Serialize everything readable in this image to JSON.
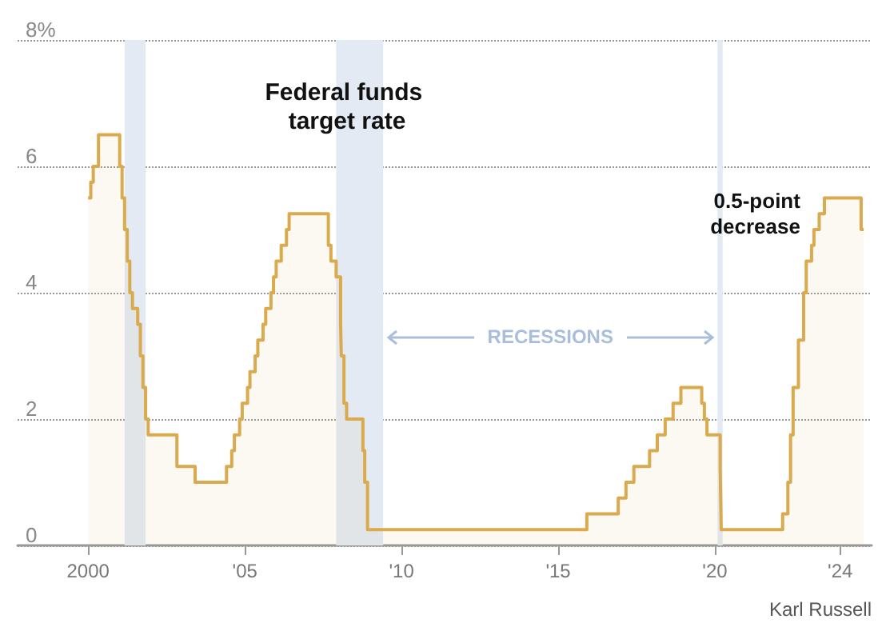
{
  "chart_data": {
    "type": "area",
    "title": "Federal funds target rate",
    "x": [
      "2000-01",
      "2000-02",
      "2000-02",
      "2000-03",
      "2000-03",
      "2000-05",
      "2000-05",
      "2001-01-03",
      "2001-01-03",
      "2001-01-31",
      "2001-01-31",
      "2001-03",
      "2001-03",
      "2001-04",
      "2001-04",
      "2001-05",
      "2001-05",
      "2001-06",
      "2001-06",
      "2001-08",
      "2001-08",
      "2001-09",
      "2001-09",
      "2001-10",
      "2001-10",
      "2001-11",
      "2001-11",
      "2001-12",
      "2001-12",
      "2002-11",
      "2002-11",
      "2003-06",
      "2003-06",
      "2004-06",
      "2004-06",
      "2004-08",
      "2004-08",
      "2004-09",
      "2004-09",
      "2004-11",
      "2004-11",
      "2004-12",
      "2004-12",
      "2005-02",
      "2005-02",
      "2005-03",
      "2005-03",
      "2005-05",
      "2005-05",
      "2005-06",
      "2005-06",
      "2005-08",
      "2005-08",
      "2005-09",
      "2005-09",
      "2005-11",
      "2005-11",
      "2005-12",
      "2005-12",
      "2006-01",
      "2006-01",
      "2006-03",
      "2006-03",
      "2006-05",
      "2006-05",
      "2006-06",
      "2006-06",
      "2007-09",
      "2007-09",
      "2007-10",
      "2007-10",
      "2007-12",
      "2007-12",
      "2008-01-22",
      "2008-01-22",
      "2008-01-30",
      "2008-01-30",
      "2008-03",
      "2008-03",
      "2008-04",
      "2008-04",
      "2008-10-08",
      "2008-10-08",
      "2008-10-29",
      "2008-10-29",
      "2008-12",
      "2008-12",
      "2015-12",
      "2015-12",
      "2016-12",
      "2016-12",
      "2017-03",
      "2017-03",
      "2017-06",
      "2017-06",
      "2017-12",
      "2017-12",
      "2018-03",
      "2018-03",
      "2018-06",
      "2018-06",
      "2018-09",
      "2018-09",
      "2018-12",
      "2018-12",
      "2019-08",
      "2019-08",
      "2019-09",
      "2019-09",
      "2019-10",
      "2019-10",
      "2020-03-03",
      "2020-03-03",
      "2020-03-15",
      "2020-03-15",
      "2022-03",
      "2022-03",
      "2022-05",
      "2022-05",
      "2022-06",
      "2022-06",
      "2022-07",
      "2022-07",
      "2022-09",
      "2022-09",
      "2022-11",
      "2022-11",
      "2022-12",
      "2022-12",
      "2023-02",
      "2023-02",
      "2023-03",
      "2023-03",
      "2023-05",
      "2023-05",
      "2023-07",
      "2023-07",
      "2024-09",
      "2024-09",
      "2024-10"
    ],
    "series": [
      {
        "color": "#d9aa4e",
        "values": [
          5.5,
          5.5,
          5.75,
          5.75,
          6.0,
          6.0,
          6.5,
          6.5,
          6.0,
          6.0,
          5.5,
          5.5,
          5.0,
          5.0,
          4.5,
          4.5,
          4.0,
          4.0,
          3.75,
          3.75,
          3.5,
          3.5,
          3.0,
          3.0,
          2.5,
          2.5,
          2.0,
          2.0,
          1.75,
          1.75,
          1.25,
          1.25,
          1.0,
          1.0,
          1.25,
          1.25,
          1.5,
          1.5,
          1.75,
          1.75,
          2.0,
          2.0,
          2.25,
          2.25,
          2.5,
          2.5,
          2.75,
          2.75,
          3.0,
          3.0,
          3.25,
          3.25,
          3.5,
          3.5,
          3.75,
          3.75,
          4.0,
          4.0,
          4.25,
          4.25,
          4.5,
          4.5,
          4.75,
          4.75,
          5.0,
          5.0,
          5.25,
          5.25,
          4.75,
          4.75,
          4.5,
          4.5,
          4.25,
          4.25,
          3.5,
          3.5,
          3.0,
          3.0,
          2.25,
          2.25,
          2.0,
          2.0,
          1.5,
          1.5,
          1.0,
          1.0,
          0.25,
          0.25,
          0.5,
          0.5,
          0.75,
          0.75,
          1.0,
          1.0,
          1.25,
          1.25,
          1.5,
          1.5,
          1.75,
          1.75,
          2.0,
          2.0,
          2.25,
          2.25,
          2.5,
          2.5,
          2.25,
          2.25,
          2.0,
          2.0,
          1.75,
          1.75,
          1.25,
          1.25,
          0.25,
          0.25,
          0.5,
          0.5,
          1.0,
          1.0,
          1.75,
          1.75,
          2.5,
          2.5,
          3.25,
          3.25,
          4.0,
          4.0,
          4.5,
          4.5,
          4.75,
          4.75,
          5.0,
          5.0,
          5.25,
          5.25,
          5.5,
          5.5,
          5.0,
          5.0
        ]
      }
    ],
    "xlim": [
      "1997-10",
      "2025"
    ],
    "xticks": [
      {
        "value": "2000",
        "label": "2000"
      },
      {
        "value": "2005",
        "label": "'05"
      },
      {
        "value": "2010",
        "label": "'10"
      },
      {
        "value": "2015",
        "label": "'15"
      },
      {
        "value": "2020",
        "label": "'20"
      },
      {
        "value": "2024",
        "label": "'24"
      }
    ],
    "ylim": [
      0,
      8
    ],
    "yticks": [
      0,
      2,
      4,
      6,
      {
        "value": 8,
        "label": "8%"
      }
    ],
    "grid": "y",
    "marker": "none",
    "line_style": "solid",
    "bands": [
      {
        "axis": "x",
        "from": "2001-03",
        "to": "2001-11",
        "color": "#e3eaf4"
      },
      {
        "axis": "x",
        "from": "2007-12",
        "to": "2009-06",
        "color": "#e3eaf4"
      },
      {
        "axis": "x",
        "from": "2020-02",
        "to": "2020-04",
        "color": "#e3eaf4"
      }
    ],
    "annotations": [
      {
        "text": "0.5-point decrease",
        "x": "2024-09",
        "y": 5.0
      },
      {
        "text": "RECESSIONS",
        "x": "2009-06",
        "y": 3.3
      },
      "Karl Russell"
    ]
  }
}
